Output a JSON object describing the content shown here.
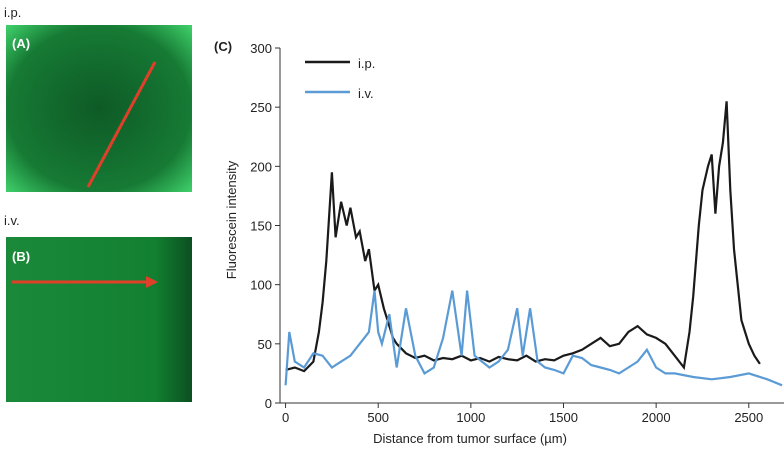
{
  "panels": {
    "a_group": "i.p.",
    "a_label": "(A)",
    "b_group": "i.v.",
    "b_label": "(B)"
  },
  "chart_data": {
    "type": "line",
    "title": "(C)",
    "xlabel": "Distance from tumor surface (µm)",
    "ylabel": "Fluorescein intensity",
    "xlim": [
      -30,
      2690
    ],
    "ylim": [
      0,
      300
    ],
    "xticks": [
      0,
      500,
      1000,
      1500,
      2000,
      2500
    ],
    "yticks": [
      0,
      50,
      100,
      150,
      200,
      250,
      300
    ],
    "legend": "upper-left",
    "series": [
      {
        "name": "i.p.",
        "color": "#1a1a1a",
        "x": [
          0,
          50,
          100,
          150,
          180,
          200,
          220,
          250,
          270,
          300,
          330,
          350,
          380,
          400,
          430,
          450,
          480,
          500,
          530,
          550,
          580,
          600,
          650,
          700,
          750,
          800,
          850,
          900,
          950,
          1000,
          1050,
          1100,
          1150,
          1200,
          1250,
          1300,
          1350,
          1400,
          1450,
          1500,
          1550,
          1600,
          1650,
          1700,
          1750,
          1800,
          1850,
          1900,
          1950,
          2000,
          2050,
          2100,
          2150,
          2180,
          2200,
          2230,
          2250,
          2280,
          2300,
          2320,
          2340,
          2360,
          2380,
          2400,
          2420,
          2440,
          2460,
          2480,
          2500,
          2530,
          2560
        ],
        "values": [
          28,
          30,
          27,
          35,
          60,
          85,
          120,
          195,
          140,
          170,
          150,
          165,
          140,
          145,
          120,
          130,
          95,
          100,
          80,
          70,
          55,
          50,
          42,
          38,
          40,
          36,
          38,
          37,
          40,
          36,
          38,
          35,
          39,
          37,
          36,
          40,
          35,
          37,
          36,
          40,
          42,
          45,
          50,
          55,
          48,
          50,
          60,
          65,
          58,
          55,
          50,
          40,
          30,
          60,
          90,
          150,
          180,
          200,
          210,
          160,
          200,
          220,
          255,
          180,
          130,
          100,
          70,
          60,
          50,
          40,
          33
        ]
      },
      {
        "name": "i.v.",
        "color": "#5b9bd5",
        "x": [
          0,
          20,
          50,
          100,
          150,
          200,
          250,
          300,
          350,
          400,
          450,
          480,
          500,
          520,
          560,
          600,
          650,
          700,
          750,
          800,
          850,
          900,
          950,
          980,
          1020,
          1100,
          1150,
          1200,
          1250,
          1280,
          1320,
          1360,
          1400,
          1450,
          1500,
          1550,
          1600,
          1650,
          1700,
          1750,
          1800,
          1850,
          1900,
          1950,
          2000,
          2050,
          2100,
          2200,
          2300,
          2400,
          2500,
          2600,
          2680
        ],
        "values": [
          15,
          60,
          35,
          30,
          42,
          40,
          30,
          35,
          40,
          50,
          60,
          95,
          60,
          50,
          75,
          30,
          80,
          40,
          25,
          30,
          55,
          95,
          40,
          95,
          40,
          30,
          35,
          45,
          80,
          40,
          80,
          35,
          30,
          28,
          25,
          40,
          38,
          32,
          30,
          28,
          25,
          30,
          35,
          45,
          30,
          25,
          25,
          22,
          20,
          22,
          25,
          20,
          15
        ]
      }
    ]
  }
}
